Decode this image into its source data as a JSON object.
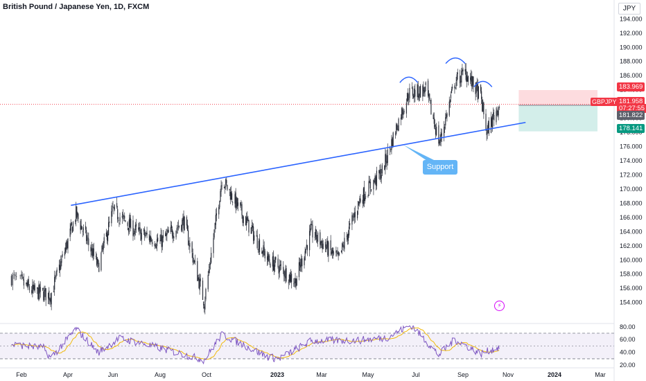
{
  "title": "British Pound / Japanese Yen, 1D, FXCM",
  "currency": "JPY",
  "symbol": "GBPJPY",
  "annotation": "Support",
  "colors": {
    "up": "#26a69a",
    "down": "#ef5350",
    "trendline": "#2962ff",
    "rsi": "#7e57c2",
    "rsi_ma": "#f0b90b",
    "tag_red": "#f23645",
    "tag_gray": "#5d606b",
    "tag_teal": "#089981"
  },
  "price_tags": {
    "stop": "183.969",
    "current": "181.958",
    "countdown": "07:27:55",
    "entry": "181.822",
    "target": "178.141"
  },
  "chart_data": [
    {
      "type": "candlestick",
      "title": "British Pound / Japanese Yen, 1D, FXCM",
      "y_ticks": [
        "154.000",
        "156.000",
        "158.000",
        "160.000",
        "162.000",
        "164.000",
        "166.000",
        "168.000",
        "170.000",
        "172.000",
        "174.000",
        "176.000",
        "178.000",
        "180.000",
        "182.000",
        "184.000",
        "186.000",
        "188.000",
        "190.000",
        "192.000",
        "194.000"
      ],
      "ylim": [
        152.5,
        195.5
      ],
      "x_ticks": [
        "Feb",
        "Apr",
        "Jun",
        "Aug",
        "Oct",
        "2023",
        "Mar",
        "May",
        "Jul",
        "Sep",
        "Nov",
        "2024",
        "Mar"
      ],
      "close_series": {
        "dates": [
          "2022-01-24",
          "2022-02-15",
          "2022-03-10",
          "2022-04-12",
          "2022-05-12",
          "2022-06-01",
          "2022-07-01",
          "2022-08-01",
          "2022-09-01",
          "2022-09-28",
          "2022-10-21",
          "2022-12-20",
          "2023-01-03",
          "2023-01-25",
          "2023-02-15",
          "2023-03-23",
          "2023-04-20",
          "2023-05-19",
          "2023-06-10",
          "2023-06-22",
          "2023-07-14",
          "2023-08-01",
          "2023-08-21",
          "2023-09-04",
          "2023-09-25",
          "2023-10-03",
          "2023-10-20"
        ],
        "close": [
          157.5,
          155.6,
          155.0,
          166.5,
          159.0,
          167.0,
          164.0,
          162.5,
          165.5,
          154.0,
          171.5,
          160.0,
          159.0,
          157.0,
          164.0,
          160.0,
          168.5,
          172.5,
          180.0,
          183.5,
          184.0,
          176.5,
          185.0,
          186.5,
          183.0,
          178.0,
          181.96
        ]
      },
      "series": [
        {
          "name": "GBPJPY",
          "last": 181.958
        }
      ],
      "trendline": {
        "from": {
          "date": "2022-04-05",
          "price": 167.7
        },
        "to": {
          "date": "2023-11-24",
          "price": 179.4
        },
        "label": "Support"
      },
      "position": {
        "stop": 183.969,
        "entry": 181.822,
        "target": 178.141
      },
      "pattern": "head-and-shoulders"
    },
    {
      "type": "line",
      "ylim": [
        18,
        83
      ],
      "y_ticks": [
        "20.00",
        "40.00",
        "60.00",
        "80.00"
      ],
      "bands": [
        30,
        50,
        70
      ],
      "x": [
        "2022-01-24",
        "2022-03-01",
        "2022-03-10",
        "2022-04-12",
        "2022-05-12",
        "2022-06-10",
        "2022-07-15",
        "2022-09-28",
        "2022-10-21",
        "2022-12-20",
        "2023-01-03",
        "2023-02-15",
        "2023-04-20",
        "2023-05-25",
        "2023-06-25",
        "2023-07-31",
        "2023-08-21",
        "2023-09-25",
        "2023-10-20"
      ],
      "series": [
        {
          "values": [
            52,
            47,
            31,
            77,
            40,
            62,
            52,
            28,
            68,
            33,
            30,
            58,
            59,
            63,
            83,
            36,
            60,
            38,
            48
          ]
        }
      ]
    }
  ]
}
